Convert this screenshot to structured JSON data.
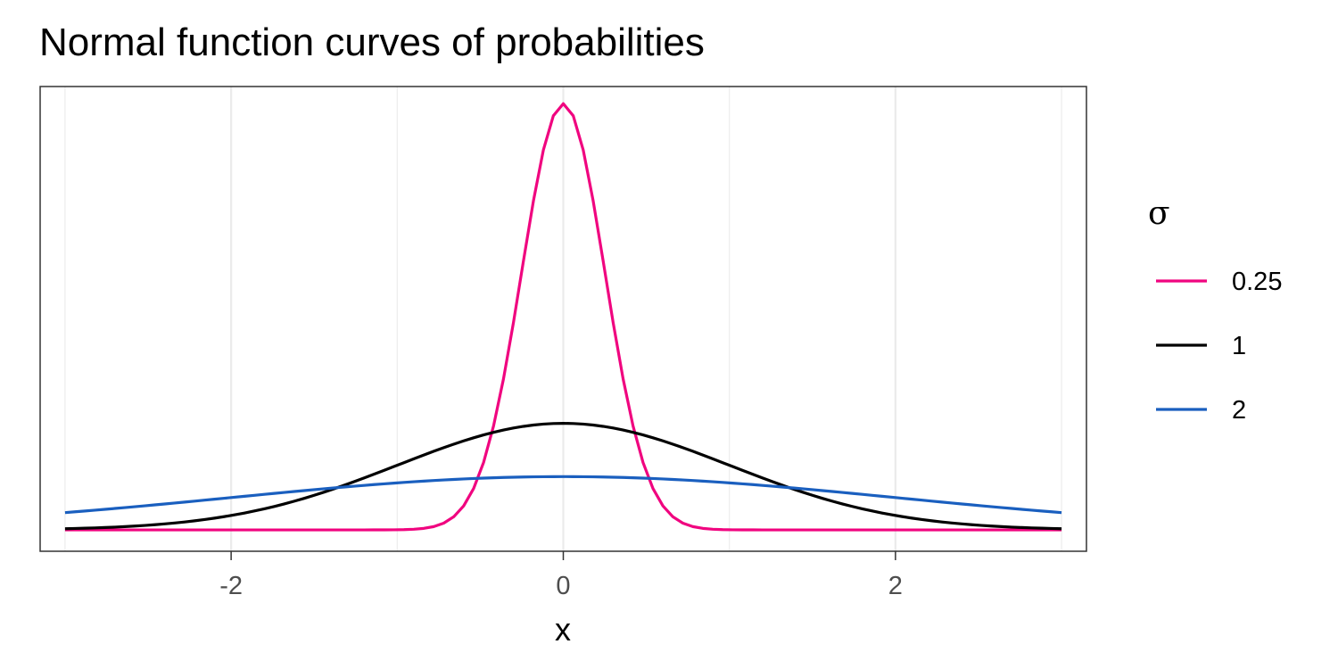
{
  "chart_data": {
    "type": "line",
    "title": "Normal function curves of probabilities",
    "xlabel": "x",
    "ylabel": "",
    "xlim": [
      -3.15,
      3.15
    ],
    "ylim": [
      -0.08,
      1.66
    ],
    "x_ticks": [
      -2,
      0,
      2
    ],
    "x_tick_labels": [
      "-2",
      "0",
      "2"
    ],
    "show_y_ticks": false,
    "grid": "vertical",
    "legend": {
      "title": "σ",
      "position": "right"
    },
    "x_range": [
      -3,
      3
    ],
    "series": [
      {
        "name": "0.25",
        "sigma": 0.25,
        "color": "#f0047f"
      },
      {
        "name": "1",
        "sigma": 1,
        "color": "#000000"
      },
      {
        "name": "2",
        "sigma": 2,
        "color": "#1a5fbf"
      }
    ]
  }
}
